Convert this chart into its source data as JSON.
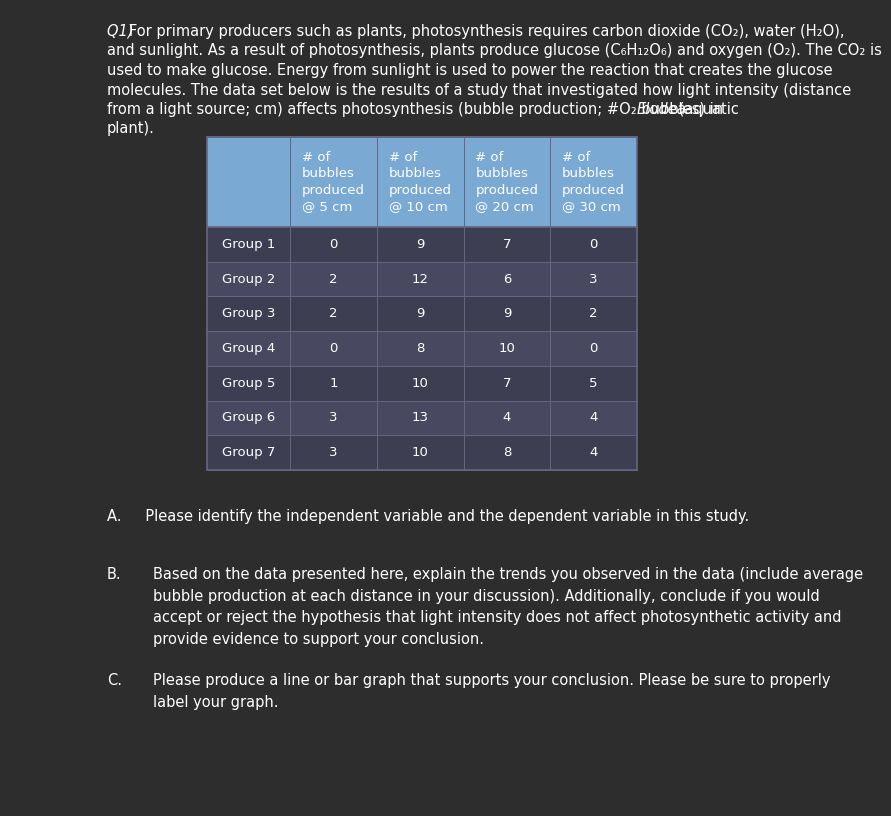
{
  "background_color": "#2d2d2d",
  "text_color": "#ffffff",
  "header_bg": "#7aaad4",
  "row_bg_even": "#3e3e52",
  "row_bg_odd": "#484860",
  "border_color": "#666680",
  "col_headers": [
    "# of\nbubbles\nproduced\n@ 5 cm",
    "# of\nbubbles\nproduced\n@ 10 cm",
    "# of\nbubbles\nproduced\n@ 20 cm",
    "# of\nbubbles\nproduced\n@ 30 cm"
  ],
  "row_labels": [
    "Group 1",
    "Group 2",
    "Group 3",
    "Group 4",
    "Group 5",
    "Group 6",
    "Group 7"
  ],
  "table_data": [
    [
      0,
      9,
      7,
      0
    ],
    [
      2,
      12,
      6,
      3
    ],
    [
      2,
      9,
      9,
      2
    ],
    [
      0,
      8,
      10,
      0
    ],
    [
      1,
      10,
      7,
      5
    ],
    [
      3,
      13,
      4,
      4
    ],
    [
      3,
      10,
      8,
      4
    ]
  ],
  "para_lines": [
    [
      "italic",
      "Q1) ",
      "normal",
      "For primary producers such as plants, photosynthesis requires carbon dioxide (CO₂), water (H₂O),"
    ],
    [
      "normal",
      "and sunlight. As a result of photosynthesis, plants produce glucose (C₆H₁₂O₆) and oxygen (O₂). The CO₂ is"
    ],
    [
      "normal",
      "used to make glucose. Energy from sunlight is used to power the reaction that creates the glucose"
    ],
    [
      "normal",
      "molecules. The data set below is the results of a study that investigated how light intensity (distance"
    ],
    [
      "elodea",
      "from a light source; cm) affects photosynthesis (bubble production; #O₂ bubbles) in ",
      "Elodea",
      " (aquatic"
    ],
    [
      "normal",
      "plant)."
    ]
  ],
  "q_a": "A.   Please identify the independent variable and the dependent variable in this study.",
  "q_b_label": "B.",
  "q_b_text": "Based on the data presented here, explain the trends you observed in the data (include average\nbubble production at each distance in your discussion). Additionally, conclude if you would\naccept or reject the hypothesis that light intensity does not affect photosynthetic activity and\nprovide evidence to support your conclusion.",
  "q_c_label": "C.",
  "q_c_text": "Please produce a line or bar graph that supports your conclusion. Please be sure to properly\nlabel your graph."
}
